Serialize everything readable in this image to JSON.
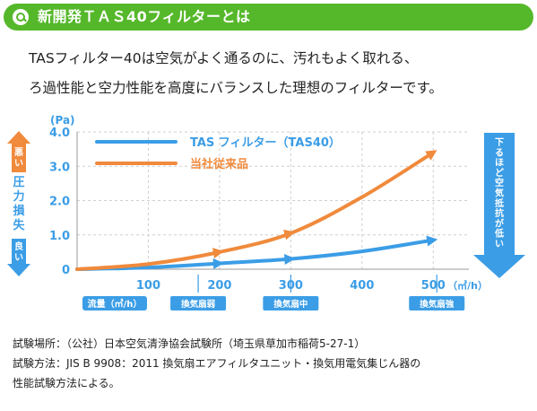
{
  "header": {
    "title": "新開発ＴＡＳ40フィルターとは",
    "icon": "search-icon",
    "bg_color": "#55b82a"
  },
  "intro": {
    "line1": "TASフィルター40は空気がよく通るのに、汚れもよく取れる、",
    "line2": "ろ過性能と空力性能を高度にバランスした理想のフィルターです。"
  },
  "chart_data": {
    "type": "line",
    "ylabel": "(Pa)",
    "xlabel": "流量（㎥/h）",
    "x_unit": "（㎥/h）",
    "xlim": [
      0,
      550
    ],
    "ylim": [
      0,
      4.0
    ],
    "x_ticks": [
      "100",
      "200",
      "300",
      "400",
      "500"
    ],
    "y_ticks": [
      "0",
      "1.0",
      "2.0",
      "3.0",
      "4.0"
    ],
    "grid": true,
    "legend_position": "top-left",
    "series": [
      {
        "name": "TAS フィルター（TAS40）",
        "color": "#3b9de6",
        "x": [
          0,
          100,
          200,
          300,
          400,
          500
        ],
        "y": [
          0.0,
          0.05,
          0.17,
          0.3,
          0.52,
          0.85
        ]
      },
      {
        "name": "当社従来品",
        "color": "#f08a3c",
        "x": [
          0,
          100,
          200,
          300,
          400,
          500
        ],
        "y": [
          0.0,
          0.15,
          0.5,
          1.05,
          2.1,
          3.4
        ]
      }
    ],
    "fan_labels": [
      {
        "label": "換気扇弱",
        "x": 170
      },
      {
        "label": "換気扇中",
        "x": 300
      },
      {
        "label": "換気扇強",
        "x": 505
      }
    ],
    "left_indicator": {
      "top": "悪い",
      "middle": "圧力損失",
      "bottom": "良い",
      "color": "#3b9de6",
      "top_color": "#f08a3c"
    },
    "right_indicator": {
      "label": "下るほど空気抵抗が低い",
      "color": "#3b9de6"
    }
  },
  "notes": {
    "line1": "試験場所：（公社）日本空気清浄協会試験所（埼玉県草加市稲荷5-27-1）",
    "line2": "試験方法：JIS B 9908：2011 換気扇エアフィルタユニット・換気用電気集じん器の",
    "line3": "性能試験方法による。"
  }
}
